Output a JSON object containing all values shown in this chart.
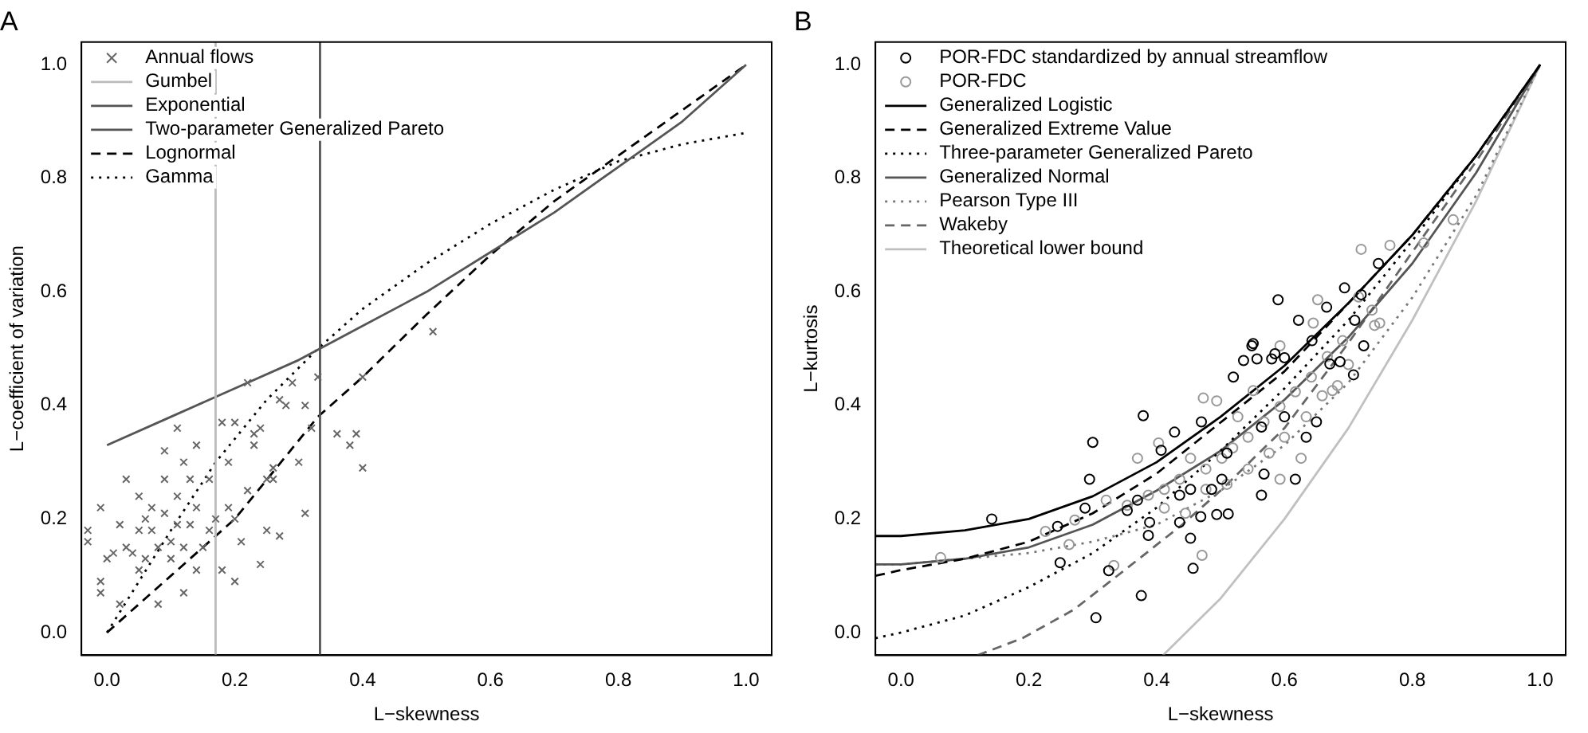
{
  "chart_data": [
    {
      "type": "scatter",
      "title": "A",
      "xlabel": "L−skewness",
      "ylabel": "L−coefficient of variation",
      "legend": "top left",
      "grid": false,
      "xlim": [
        -0.04,
        1.04
      ],
      "ylim": [
        -0.04,
        1.04
      ],
      "xticks": [
        {
          "value": 0,
          "label": "0.0"
        },
        {
          "value": 0.2,
          "label": "0.2"
        },
        {
          "value": 0.4,
          "label": "0.4"
        },
        {
          "value": 0.6,
          "label": "0.6"
        },
        {
          "value": 0.8,
          "label": "0.8"
        },
        {
          "value": 1,
          "label": "1.0"
        }
      ],
      "yticks": [
        {
          "value": 0,
          "label": "0.0"
        },
        {
          "value": 0.2,
          "label": "0.2"
        },
        {
          "value": 0.4,
          "label": "0.4"
        },
        {
          "value": 0.6,
          "label": "0.6"
        },
        {
          "value": 0.8,
          "label": "0.8"
        },
        {
          "value": 1,
          "label": "1.0"
        }
      ],
      "series": [
        {
          "name": "Annual flows",
          "type": "scatter",
          "marker": "cross",
          "color": "#666666",
          "x": [
            0.51,
            0.4,
            0.4,
            0.39,
            0.38,
            0.36,
            0.33,
            0.32,
            0.31,
            0.31,
            0.3,
            0.29,
            0.28,
            0.27,
            0.22,
            0.27,
            0.25,
            0.24,
            0.2,
            0.11,
            0.08,
            0.12,
            0.02,
            -0.01,
            -0.01,
            -0.01,
            0.03,
            0.09,
            0.14,
            0.18,
            0.2,
            0.23,
            0.22,
            0.25,
            0.26,
            0.26,
            0.21,
            0.18,
            0.14,
            0.05,
            0.01,
            0.05,
            0.07,
            0.07,
            0.1,
            0.13,
            0.13,
            0.16,
            0.16,
            0.19,
            0.19,
            0.09,
            0.05,
            0.02,
            -0.03,
            -0.03,
            0.1,
            0.03,
            0.14,
            0.11,
            0.06,
            0.12,
            0.23,
            0.24,
            0.04,
            0.08,
            0.12,
            0.15,
            0.0,
            0.06,
            0.11,
            0.17,
            0.2,
            0.09
          ],
          "values": [
            0.53,
            0.29,
            0.45,
            0.35,
            0.33,
            0.35,
            0.45,
            0.36,
            0.4,
            0.21,
            0.3,
            0.44,
            0.4,
            0.41,
            0.44,
            0.17,
            0.18,
            0.12,
            0.09,
            0.36,
            0.05,
            0.07,
            0.05,
            0.07,
            0.09,
            0.22,
            0.27,
            0.32,
            0.33,
            0.37,
            0.37,
            0.33,
            0.25,
            0.27,
            0.27,
            0.29,
            0.16,
            0.11,
            0.11,
            0.11,
            0.14,
            0.18,
            0.18,
            0.22,
            0.16,
            0.19,
            0.27,
            0.27,
            0.18,
            0.22,
            0.3,
            0.27,
            0.24,
            0.19,
            0.18,
            0.16,
            0.13,
            0.15,
            0.22,
            0.19,
            0.13,
            0.3,
            0.35,
            0.36,
            0.14,
            0.15,
            0.15,
            0.15,
            0.13,
            0.2,
            0.24,
            0.2,
            0.2,
            0.21
          ]
        },
        {
          "name": "Gumbel",
          "type": "line",
          "color": "#bbbbbb",
          "line_style": "solid",
          "x": [
            0.1699,
            0.1699
          ],
          "values": [
            -0.04,
            1.04
          ]
        },
        {
          "name": "Exponential",
          "type": "line",
          "color": "#555555",
          "line_style": "solid",
          "x": [
            0.3333,
            0.3333
          ],
          "values": [
            -0.04,
            1.04
          ]
        },
        {
          "name": "Two-parameter Generalized Pareto",
          "type": "line",
          "color": "#555555",
          "line_style": "solid",
          "x": [
            0,
            0.1,
            0.2,
            0.3,
            0.4,
            0.5,
            0.6,
            0.7,
            0.8,
            0.9,
            1
          ],
          "values": [
            0.33,
            0.38,
            0.43,
            0.48,
            0.54,
            0.6,
            0.67,
            0.74,
            0.82,
            0.9,
            1
          ]
        },
        {
          "name": "Lognormal",
          "type": "line",
          "color": "#000000",
          "line_style": "dashed",
          "x": [
            0,
            0.1,
            0.2,
            0.33,
            0.4,
            0.5,
            0.6,
            0.7,
            0.8,
            0.9,
            1
          ],
          "values": [
            0,
            0.1,
            0.2,
            0.38,
            0.45,
            0.56,
            0.665,
            0.76,
            0.84,
            0.92,
            1
          ]
        },
        {
          "name": "Gamma",
          "type": "line",
          "color": "#000000",
          "line_style": "dotted",
          "x": [
            0,
            0.05,
            0.1,
            0.17,
            0.25,
            0.33,
            0.4,
            0.5,
            0.6,
            0.7,
            0.8,
            0.9,
            1
          ],
          "values": [
            0,
            0.09,
            0.18,
            0.3,
            0.41,
            0.5,
            0.57,
            0.65,
            0.72,
            0.78,
            0.83,
            0.86,
            0.88
          ]
        }
      ]
    },
    {
      "type": "scatter",
      "title": "B",
      "xlabel": "L−skewness",
      "ylabel": "L−kurtosis",
      "legend": "top left",
      "grid": false,
      "xlim": [
        -0.04,
        1.04
      ],
      "ylim": [
        -0.04,
        1.04
      ],
      "xticks": [
        {
          "value": 0,
          "label": "0.0"
        },
        {
          "value": 0.2,
          "label": "0.2"
        },
        {
          "value": 0.4,
          "label": "0.4"
        },
        {
          "value": 0.6,
          "label": "0.6"
        },
        {
          "value": 0.8,
          "label": "0.8"
        },
        {
          "value": 1,
          "label": "1.0"
        }
      ],
      "yticks": [
        {
          "value": 0,
          "label": "0.0"
        },
        {
          "value": 0.2,
          "label": "0.2"
        },
        {
          "value": 0.4,
          "label": "0.4"
        },
        {
          "value": 0.6,
          "label": "0.6"
        },
        {
          "value": 0.8,
          "label": "0.8"
        },
        {
          "value": 1,
          "label": "1.0"
        }
      ],
      "series": [
        {
          "name": "POR-FDC standardized by annual streamflow",
          "type": "scatter",
          "marker": "circle",
          "color": "#000000",
          "x": [
            0.142,
            0.3,
            0.379,
            0.376,
            0.305,
            0.325,
            0.249,
            0.245,
            0.295,
            0.288,
            0.387,
            0.389,
            0.457,
            0.453,
            0.436,
            0.469,
            0.494,
            0.512,
            0.428,
            0.407,
            0.47,
            0.52,
            0.549,
            0.557,
            0.58,
            0.6,
            0.617,
            0.634,
            0.65,
            0.671,
            0.687,
            0.708,
            0.724,
            0.568,
            0.564,
            0.51,
            0.486,
            0.453,
            0.436,
            0.37,
            0.354,
            0.502,
            0.6,
            0.564,
            0.59,
            0.694,
            0.622,
            0.666,
            0.71,
            0.747,
            0.643,
            0.551,
            0.536,
            0.585,
            0.72
          ],
          "values": [
            0.2,
            0.335,
            0.382,
            0.065,
            0.026,
            0.109,
            0.123,
            0.187,
            0.27,
            0.219,
            0.171,
            0.194,
            0.113,
            0.166,
            0.194,
            0.204,
            0.208,
            0.209,
            0.353,
            0.321,
            0.371,
            0.45,
            0.505,
            0.482,
            0.482,
            0.484,
            0.27,
            0.344,
            0.371,
            0.473,
            0.477,
            0.454,
            0.505,
            0.279,
            0.242,
            0.316,
            0.252,
            0.252,
            0.242,
            0.233,
            0.215,
            0.27,
            0.38,
            0.362,
            0.586,
            0.607,
            0.55,
            0.573,
            0.55,
            0.65,
            0.514,
            0.509,
            0.479,
            0.491,
            0.595
          ]
        },
        {
          "name": "POR-FDC",
          "type": "scatter",
          "marker": "circle",
          "color": "#999999",
          "x": [
            0.062,
            0.263,
            0.226,
            0.272,
            0.333,
            0.471,
            0.473,
            0.593,
            0.72,
            0.765,
            0.818,
            0.864,
            0.645,
            0.737,
            0.749,
            0.716,
            0.652,
            0.436,
            0.477,
            0.502,
            0.519,
            0.543,
            0.568,
            0.593,
            0.617,
            0.642,
            0.667,
            0.691,
            0.412,
            0.387,
            0.354,
            0.321,
            0.453,
            0.477,
            0.51,
            0.543,
            0.576,
            0.6,
            0.634,
            0.659,
            0.683,
            0.7,
            0.741,
            0.593,
            0.527,
            0.494,
            0.551,
            0.626,
            0.445,
            0.412,
            0.675,
            0.403,
            0.37
          ],
          "values": [
            0.132,
            0.155,
            0.178,
            0.198,
            0.118,
            0.136,
            0.413,
            0.505,
            0.675,
            0.682,
            0.686,
            0.727,
            0.545,
            0.568,
            0.545,
            0.591,
            0.586,
            0.27,
            0.288,
            0.307,
            0.325,
            0.344,
            0.371,
            0.398,
            0.424,
            0.45,
            0.486,
            0.514,
            0.252,
            0.242,
            0.224,
            0.233,
            0.307,
            0.252,
            0.261,
            0.288,
            0.316,
            0.344,
            0.38,
            0.417,
            0.435,
            0.472,
            0.541,
            0.27,
            0.38,
            0.408,
            0.426,
            0.307,
            0.21,
            0.219,
            0.426,
            0.334,
            0.307
          ]
        },
        {
          "name": "Generalized Logistic",
          "type": "line",
          "color": "#000000",
          "line_style": "solid",
          "x": [
            -0.04,
            0,
            0.1,
            0.2,
            0.3,
            0.4,
            0.5,
            0.6,
            0.7,
            0.8,
            0.9,
            1
          ],
          "values": [
            0.17,
            0.17,
            0.18,
            0.2,
            0.24,
            0.3,
            0.38,
            0.47,
            0.58,
            0.7,
            0.84,
            1
          ]
        },
        {
          "name": "Generalized Extreme Value",
          "type": "line",
          "color": "#000000",
          "line_style": "dashed",
          "x": [
            -0.04,
            0,
            0.1,
            0.2,
            0.3,
            0.4,
            0.5,
            0.6,
            0.7,
            0.8,
            0.9,
            1
          ],
          "values": [
            0.1,
            0.11,
            0.13,
            0.16,
            0.21,
            0.28,
            0.37,
            0.46,
            0.58,
            0.7,
            0.84,
            1
          ]
        },
        {
          "name": "Three-parameter Generalized Pareto",
          "type": "line",
          "color": "#000000",
          "line_style": "dotted",
          "x": [
            -0.04,
            0,
            0.1,
            0.2,
            0.3,
            0.4,
            0.5,
            0.6,
            0.7,
            0.8,
            0.9,
            1
          ],
          "values": [
            -0.01,
            0,
            0.03,
            0.08,
            0.14,
            0.22,
            0.32,
            0.43,
            0.55,
            0.69,
            0.84,
            1
          ]
        },
        {
          "name": "Generalized Normal",
          "type": "line",
          "color": "#555555",
          "line_style": "solid",
          "x": [
            -0.04,
            0,
            0.1,
            0.2,
            0.3,
            0.4,
            0.5,
            0.6,
            0.7,
            0.8,
            0.9,
            1
          ],
          "values": [
            0.12,
            0.12,
            0.13,
            0.15,
            0.19,
            0.25,
            0.32,
            0.41,
            0.52,
            0.65,
            0.81,
            1
          ]
        },
        {
          "name": "Pearson Type III",
          "type": "line",
          "color": "#777777",
          "line_style": "dotted",
          "x": [
            -0.04,
            0,
            0.1,
            0.2,
            0.3,
            0.4,
            0.5,
            0.6,
            0.7,
            0.8,
            0.9,
            1
          ],
          "values": [
            0.12,
            0.12,
            0.13,
            0.14,
            0.16,
            0.19,
            0.25,
            0.33,
            0.44,
            0.59,
            0.77,
            1
          ]
        },
        {
          "name": "Wakeby",
          "type": "line",
          "color": "#666666",
          "line_style": "dashed",
          "x": [
            0.12,
            0.19,
            0.27,
            0.35,
            0.44,
            0.5,
            0.6,
            0.7,
            0.8,
            0.9,
            1
          ],
          "values": [
            -0.04,
            -0.01,
            0.04,
            0.11,
            0.19,
            0.25,
            0.36,
            0.51,
            0.67,
            0.83,
            1
          ]
        },
        {
          "name": "Theoretical lower bound",
          "type": "line",
          "color": "#c0c0c0",
          "line_style": "solid",
          "x": [
            0.41,
            0.5,
            0.6,
            0.7,
            0.8,
            0.9,
            1
          ],
          "values": [
            -0.04,
            0.06,
            0.2,
            0.36,
            0.55,
            0.76,
            1
          ]
        }
      ]
    }
  ]
}
